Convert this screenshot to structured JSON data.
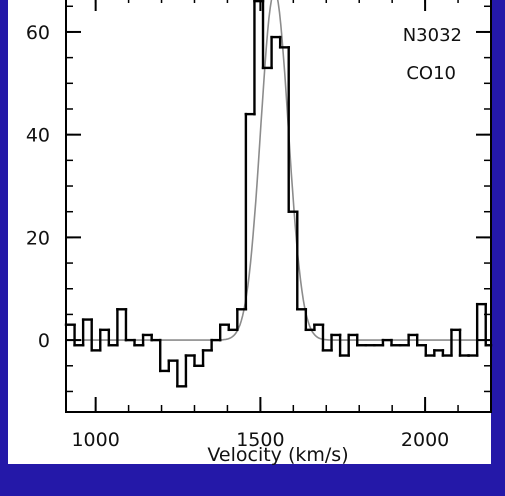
{
  "chart_data": {
    "type": "line",
    "title": "",
    "xlabel": "Velocity (km/s)",
    "ylabel": "",
    "xlim": [
      910,
      2200
    ],
    "ylim": [
      -14,
      67
    ],
    "x_ticks": [
      1000,
      1500,
      2000
    ],
    "y_ticks": [
      0,
      20,
      40,
      60
    ],
    "annotations": [
      "N3032",
      "CO10"
    ],
    "grid": false,
    "colors": {
      "background": "#2418a8",
      "plot_area": "#ffffff",
      "histogram": "#000000",
      "fit": "#8c8c8c"
    },
    "series": [
      {
        "style": "histogram",
        "bin_width": 26,
        "x": [
          910,
          936,
          962,
          988,
          1014,
          1040,
          1066,
          1092,
          1118,
          1144,
          1170,
          1196,
          1222,
          1248,
          1274,
          1300,
          1326,
          1352,
          1378,
          1404,
          1430,
          1456,
          1482,
          1508,
          1534,
          1560,
          1586,
          1612,
          1638,
          1664,
          1690,
          1716,
          1742,
          1768,
          1794,
          1820,
          1846,
          1872,
          1898,
          1924,
          1950,
          1976,
          2002,
          2028,
          2054,
          2080,
          2106,
          2132,
          2158,
          2184
        ],
        "values": [
          3,
          -1,
          4,
          -2,
          2,
          -1,
          6,
          0,
          -1,
          1,
          0,
          -6,
          -4,
          -9,
          -3,
          -5,
          -2,
          0,
          3,
          2,
          6,
          44,
          66,
          53,
          59,
          57,
          25,
          6,
          2,
          3,
          -2,
          1,
          -3,
          1,
          -1,
          -1,
          -1,
          0,
          -1,
          -1,
          1,
          -1,
          -3,
          -2,
          -3,
          2,
          -3,
          -3,
          7,
          -1
        ]
      },
      {
        "style": "smooth",
        "gaussian_fit": {
          "center": 1543,
          "sigma": 42,
          "amplitude": 68
        }
      }
    ]
  }
}
